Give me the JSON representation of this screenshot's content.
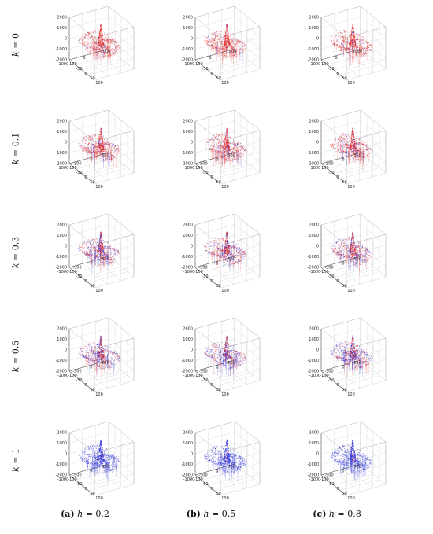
{
  "figure": {
    "rows": [
      {
        "var": "k",
        "eq": "=",
        "value": "0"
      },
      {
        "var": "k",
        "eq": "=",
        "value": "0.1"
      },
      {
        "var": "k",
        "eq": "=",
        "value": "0.3"
      },
      {
        "var": "k",
        "eq": "=",
        "value": "0.5"
      },
      {
        "var": "k",
        "eq": "=",
        "value": "1"
      }
    ],
    "columns": [
      {
        "tag": "(a)",
        "var": "h",
        "eq": "=",
        "value": "0.2"
      },
      {
        "tag": "(b)",
        "var": "h",
        "eq": "=",
        "value": "0.5"
      },
      {
        "tag": "(c)",
        "var": "h",
        "eq": "=",
        "value": "0.8"
      }
    ]
  },
  "chart_data": {
    "type": "surface3d",
    "grid": true,
    "axes": {
      "z_ticks": [
        "2000",
        "1000",
        "0",
        "-1000",
        "-2000"
      ],
      "zlim": [
        -2000,
        2000
      ],
      "y_ticks_row1": [
        "1000",
        "0",
        "-1000"
      ],
      "y_ticks": [
        "500",
        "0",
        "-500",
        "-1000"
      ],
      "ylim": [
        -1000,
        1000
      ],
      "x_ticks": [
        "-100",
        "-50",
        "0",
        "50",
        "100"
      ],
      "xlim": [
        -100,
        100
      ]
    },
    "series_colors": {
      "red": "#e8302c",
      "blue": "#2a2fd8"
    },
    "panels_red_fraction_by_row": [
      0.85,
      0.75,
      0.6,
      0.45,
      0.0
    ]
  }
}
